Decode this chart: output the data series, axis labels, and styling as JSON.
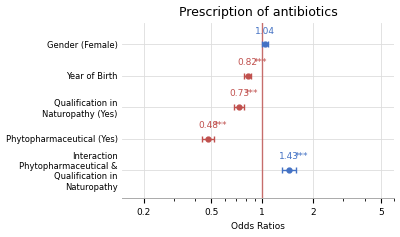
{
  "title": "Prescription of antibiotics",
  "xlabel": "Odds Ratios",
  "xlim_log": [
    -0.78,
    0.72
  ],
  "xticks": [
    0.2,
    0.5,
    1,
    2,
    5
  ],
  "vline_x": 1.0,
  "vline_color": "#c0504d",
  "categories": [
    "Gender (Female)",
    "Year of Birth",
    "Qualification in\nNaturopathy (Yes)",
    "Phytopharmaceutical (Yes)",
    "Interaction\nPhytopharmaceutical &\nQualification in\nNaturopathy"
  ],
  "or_values": [
    1.04,
    0.82,
    0.73,
    0.48,
    1.43
  ],
  "ci_low": [
    1.0,
    0.78,
    0.68,
    0.44,
    1.3
  ],
  "ci_high": [
    1.08,
    0.86,
    0.78,
    0.52,
    1.57
  ],
  "labels": [
    "1.04",
    "0.82",
    "0.73",
    "0.48",
    "1.43"
  ],
  "sig_labels": [
    "",
    "***",
    "***",
    "***",
    "***"
  ],
  "colors": [
    "#4472c4",
    "#c0504d",
    "#c0504d",
    "#c0504d",
    "#4472c4"
  ],
  "background_color": "#ffffff",
  "grid_color": "#dddddd",
  "title_fontsize": 9,
  "label_fontsize": 6,
  "tick_fontsize": 6.5,
  "annot_fontsize": 6.5
}
